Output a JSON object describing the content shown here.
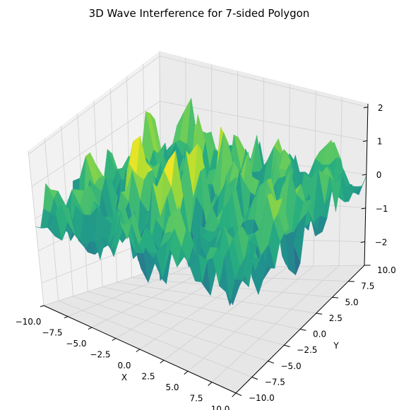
{
  "chart_data": {
    "type": "surface3d",
    "title": "3D Wave Interference for 7-sided Polygon",
    "xlabel": "X",
    "ylabel": "Y",
    "zlabel": "",
    "xlim": [
      -10,
      10
    ],
    "ylim": [
      -10,
      10
    ],
    "zlim": [
      -2.7,
      2.1
    ],
    "colormap": "viridis",
    "grid": true,
    "x_ticks": [
      "−10.0",
      "−7.5",
      "−5.0",
      "−2.5",
      "0.0",
      "2.5",
      "5.0",
      "7.5",
      "10.0"
    ],
    "y_ticks": [
      "−10.0",
      "−7.5",
      "−5.0",
      "−2.5",
      "0.0",
      "2.5",
      "5.0",
      "7.5",
      "10.0"
    ],
    "z_ticks": [
      "−2",
      "−1",
      "0",
      "1",
      "2"
    ],
    "x_tick_values": [
      -10,
      -7.5,
      -5,
      -2.5,
      0,
      2.5,
      5,
      7.5,
      10
    ],
    "y_tick_values": [
      -10,
      -7.5,
      -5,
      -2.5,
      0,
      2.5,
      5,
      7.5,
      10
    ],
    "z_tick_values": [
      -2,
      -1,
      0,
      1,
      2
    ],
    "grid_resolution": 30,
    "z_range_observed": [
      -2.6,
      2.0
    ]
  }
}
